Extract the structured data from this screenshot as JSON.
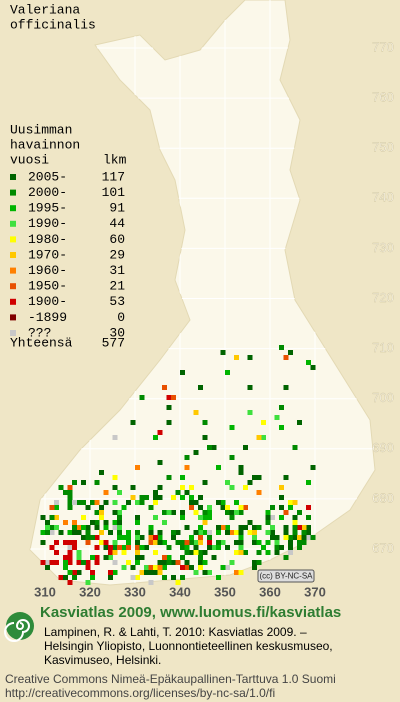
{
  "title": [
    "Valeriana",
    "officinalis"
  ],
  "legend": {
    "heading": [
      "Uusimman",
      "havainnon",
      "vuosi"
    ],
    "count_heading": "lkm",
    "entries": [
      {
        "label": "2005-",
        "count": 117,
        "color": "#006400"
      },
      {
        "label": "2000-",
        "count": 101,
        "color": "#008a00"
      },
      {
        "label": "1995-",
        "count": 91,
        "color": "#00b400"
      },
      {
        "label": "1990-",
        "count": 44,
        "color": "#3ee03e"
      },
      {
        "label": "1980-",
        "count": 60,
        "color": "#ffff00"
      },
      {
        "label": "1970-",
        "count": 29,
        "color": "#ffc800"
      },
      {
        "label": "1960-",
        "count": 31,
        "color": "#ff8000"
      },
      {
        "label": "1950-",
        "count": 21,
        "color": "#e85000"
      },
      {
        "label": "1900-",
        "count": 53,
        "color": "#d00000"
      },
      {
        "label": "-1899",
        "count": 0,
        "color": "#800000"
      },
      {
        "label": "???",
        "count": 30,
        "color": "#c8c8c8"
      }
    ],
    "total_label": "Yhteensä",
    "total": 577
  },
  "grid": {
    "north": [
      770,
      760,
      750,
      740,
      730,
      720,
      710,
      700,
      690,
      680,
      670
    ],
    "east": [
      310,
      320,
      330,
      340,
      350,
      360,
      370
    ]
  },
  "badge": "(cc) BY-NC-SA",
  "footer": {
    "title": "Kasviatlas 2009, www.luomus.fi/kasviatlas",
    "citation": [
      "Lampinen, R. & Lahti, T. 2010: Kasviatlas 2009. –",
      "Helsingin Yliopisto, Luonnontieteellinen keskusmuseo,",
      "Kasvimuseo, Helsinki."
    ],
    "license": [
      "Creative Commons Nimeä-Epäkaupallinen-Tarttuva 1.0 Suomi",
      "http://creativecommons.org/licenses/by-nc-sa/1.0/fi"
    ]
  }
}
